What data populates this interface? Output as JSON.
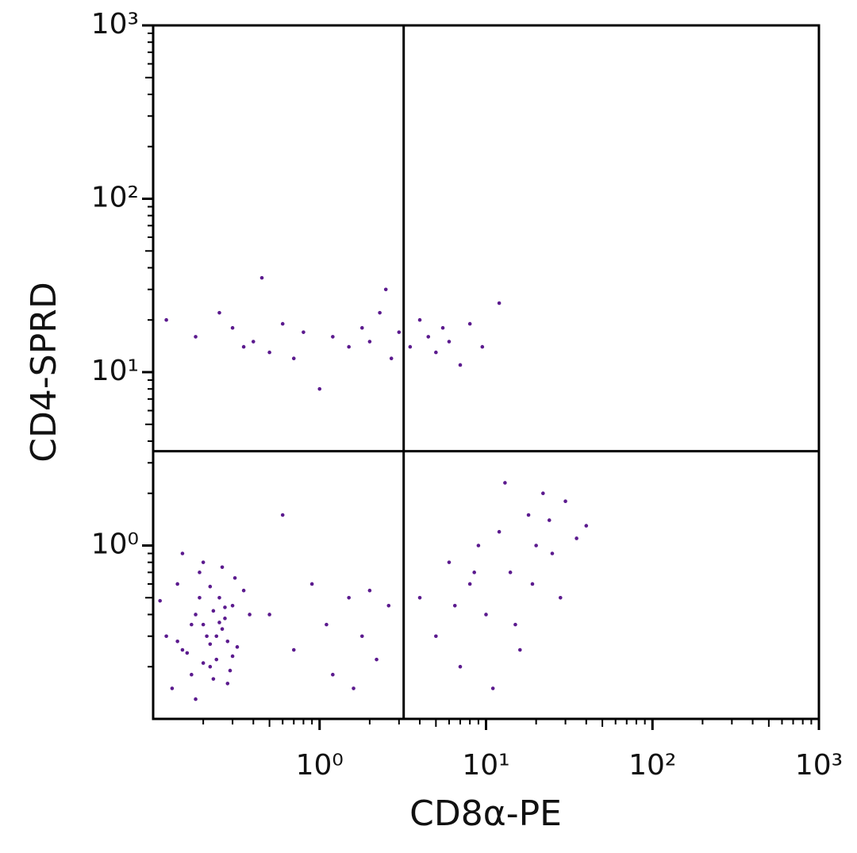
{
  "chart_data": {
    "type": "scatter",
    "x_label": "CD8α-PE",
    "y_label": "CD4-SPRD",
    "log_x": true,
    "log_y": true,
    "xlim": [
      0.1,
      1000
    ],
    "ylim": [
      0.1,
      1000
    ],
    "xticks": [
      {
        "value": 1,
        "label": "10⁰"
      },
      {
        "value": 10,
        "label": "10¹"
      },
      {
        "value": 100,
        "label": "10²"
      },
      {
        "value": 1000,
        "label": "10³"
      }
    ],
    "yticks": [
      {
        "value": 1,
        "label": "10⁰"
      },
      {
        "value": 10,
        "label": "10¹"
      },
      {
        "value": 100,
        "label": "10²"
      },
      {
        "value": 1000,
        "label": "10³"
      }
    ],
    "gates": {
      "x": 3.2,
      "y": 3.5
    },
    "series": [
      {
        "color": "#5b1a8e",
        "x": [
          0.12,
          0.15,
          0.18,
          0.2,
          0.22,
          0.25,
          0.28,
          0.3,
          0.14,
          0.17,
          0.21,
          0.24,
          0.27,
          0.32,
          0.13,
          0.19,
          0.23,
          0.26,
          0.29,
          0.35,
          0.16,
          0.2,
          0.22,
          0.25,
          0.18,
          0.28,
          0.31,
          0.11,
          0.15,
          0.24,
          0.2,
          0.26,
          0.17,
          0.22,
          0.38,
          0.3,
          0.14,
          0.19,
          0.23,
          0.27,
          0.5,
          0.7,
          0.9,
          1.2,
          1.5,
          1.8,
          2.2,
          2.6,
          0.6,
          1.1,
          1.6,
          2.0,
          4,
          5,
          6,
          7,
          8,
          9,
          10,
          12,
          14,
          16,
          18,
          20,
          22,
          25,
          28,
          30,
          35,
          40,
          6.5,
          11,
          15,
          19,
          24,
          8.5,
          13,
          0.12,
          0.18,
          0.25,
          0.3,
          0.35,
          0.4,
          0.5,
          0.6,
          0.7,
          0.8,
          1.0,
          1.2,
          1.5,
          1.8,
          2.0,
          2.3,
          2.7,
          3.0,
          3.5,
          4.0,
          4.5,
          5.0,
          5.5,
          6.0,
          7.0,
          8.0,
          9.5,
          12,
          0.45,
          2.5
        ],
        "y": [
          0.3,
          0.25,
          0.4,
          0.35,
          0.2,
          0.5,
          0.28,
          0.45,
          0.6,
          0.18,
          0.3,
          0.22,
          0.38,
          0.26,
          0.15,
          0.7,
          0.42,
          0.33,
          0.19,
          0.55,
          0.24,
          0.8,
          0.27,
          0.36,
          0.13,
          0.16,
          0.65,
          0.48,
          0.9,
          0.3,
          0.21,
          0.75,
          0.35,
          0.58,
          0.4,
          0.23,
          0.28,
          0.5,
          0.17,
          0.44,
          0.4,
          0.25,
          0.6,
          0.18,
          0.5,
          0.3,
          0.22,
          0.45,
          1.5,
          0.35,
          0.15,
          0.55,
          0.5,
          0.3,
          0.8,
          0.2,
          0.6,
          1.0,
          0.4,
          1.2,
          0.7,
          0.25,
          1.5,
          1.0,
          2.0,
          0.9,
          0.5,
          1.8,
          1.1,
          1.3,
          0.45,
          0.15,
          0.35,
          0.6,
          1.4,
          0.7,
          2.3,
          20,
          16,
          22,
          18,
          14,
          15,
          13,
          19,
          12,
          17,
          8,
          16,
          14,
          18,
          15,
          22,
          12,
          17,
          14,
          20,
          16,
          13,
          18,
          15,
          11,
          19,
          14,
          25,
          35,
          30
        ]
      }
    ]
  }
}
